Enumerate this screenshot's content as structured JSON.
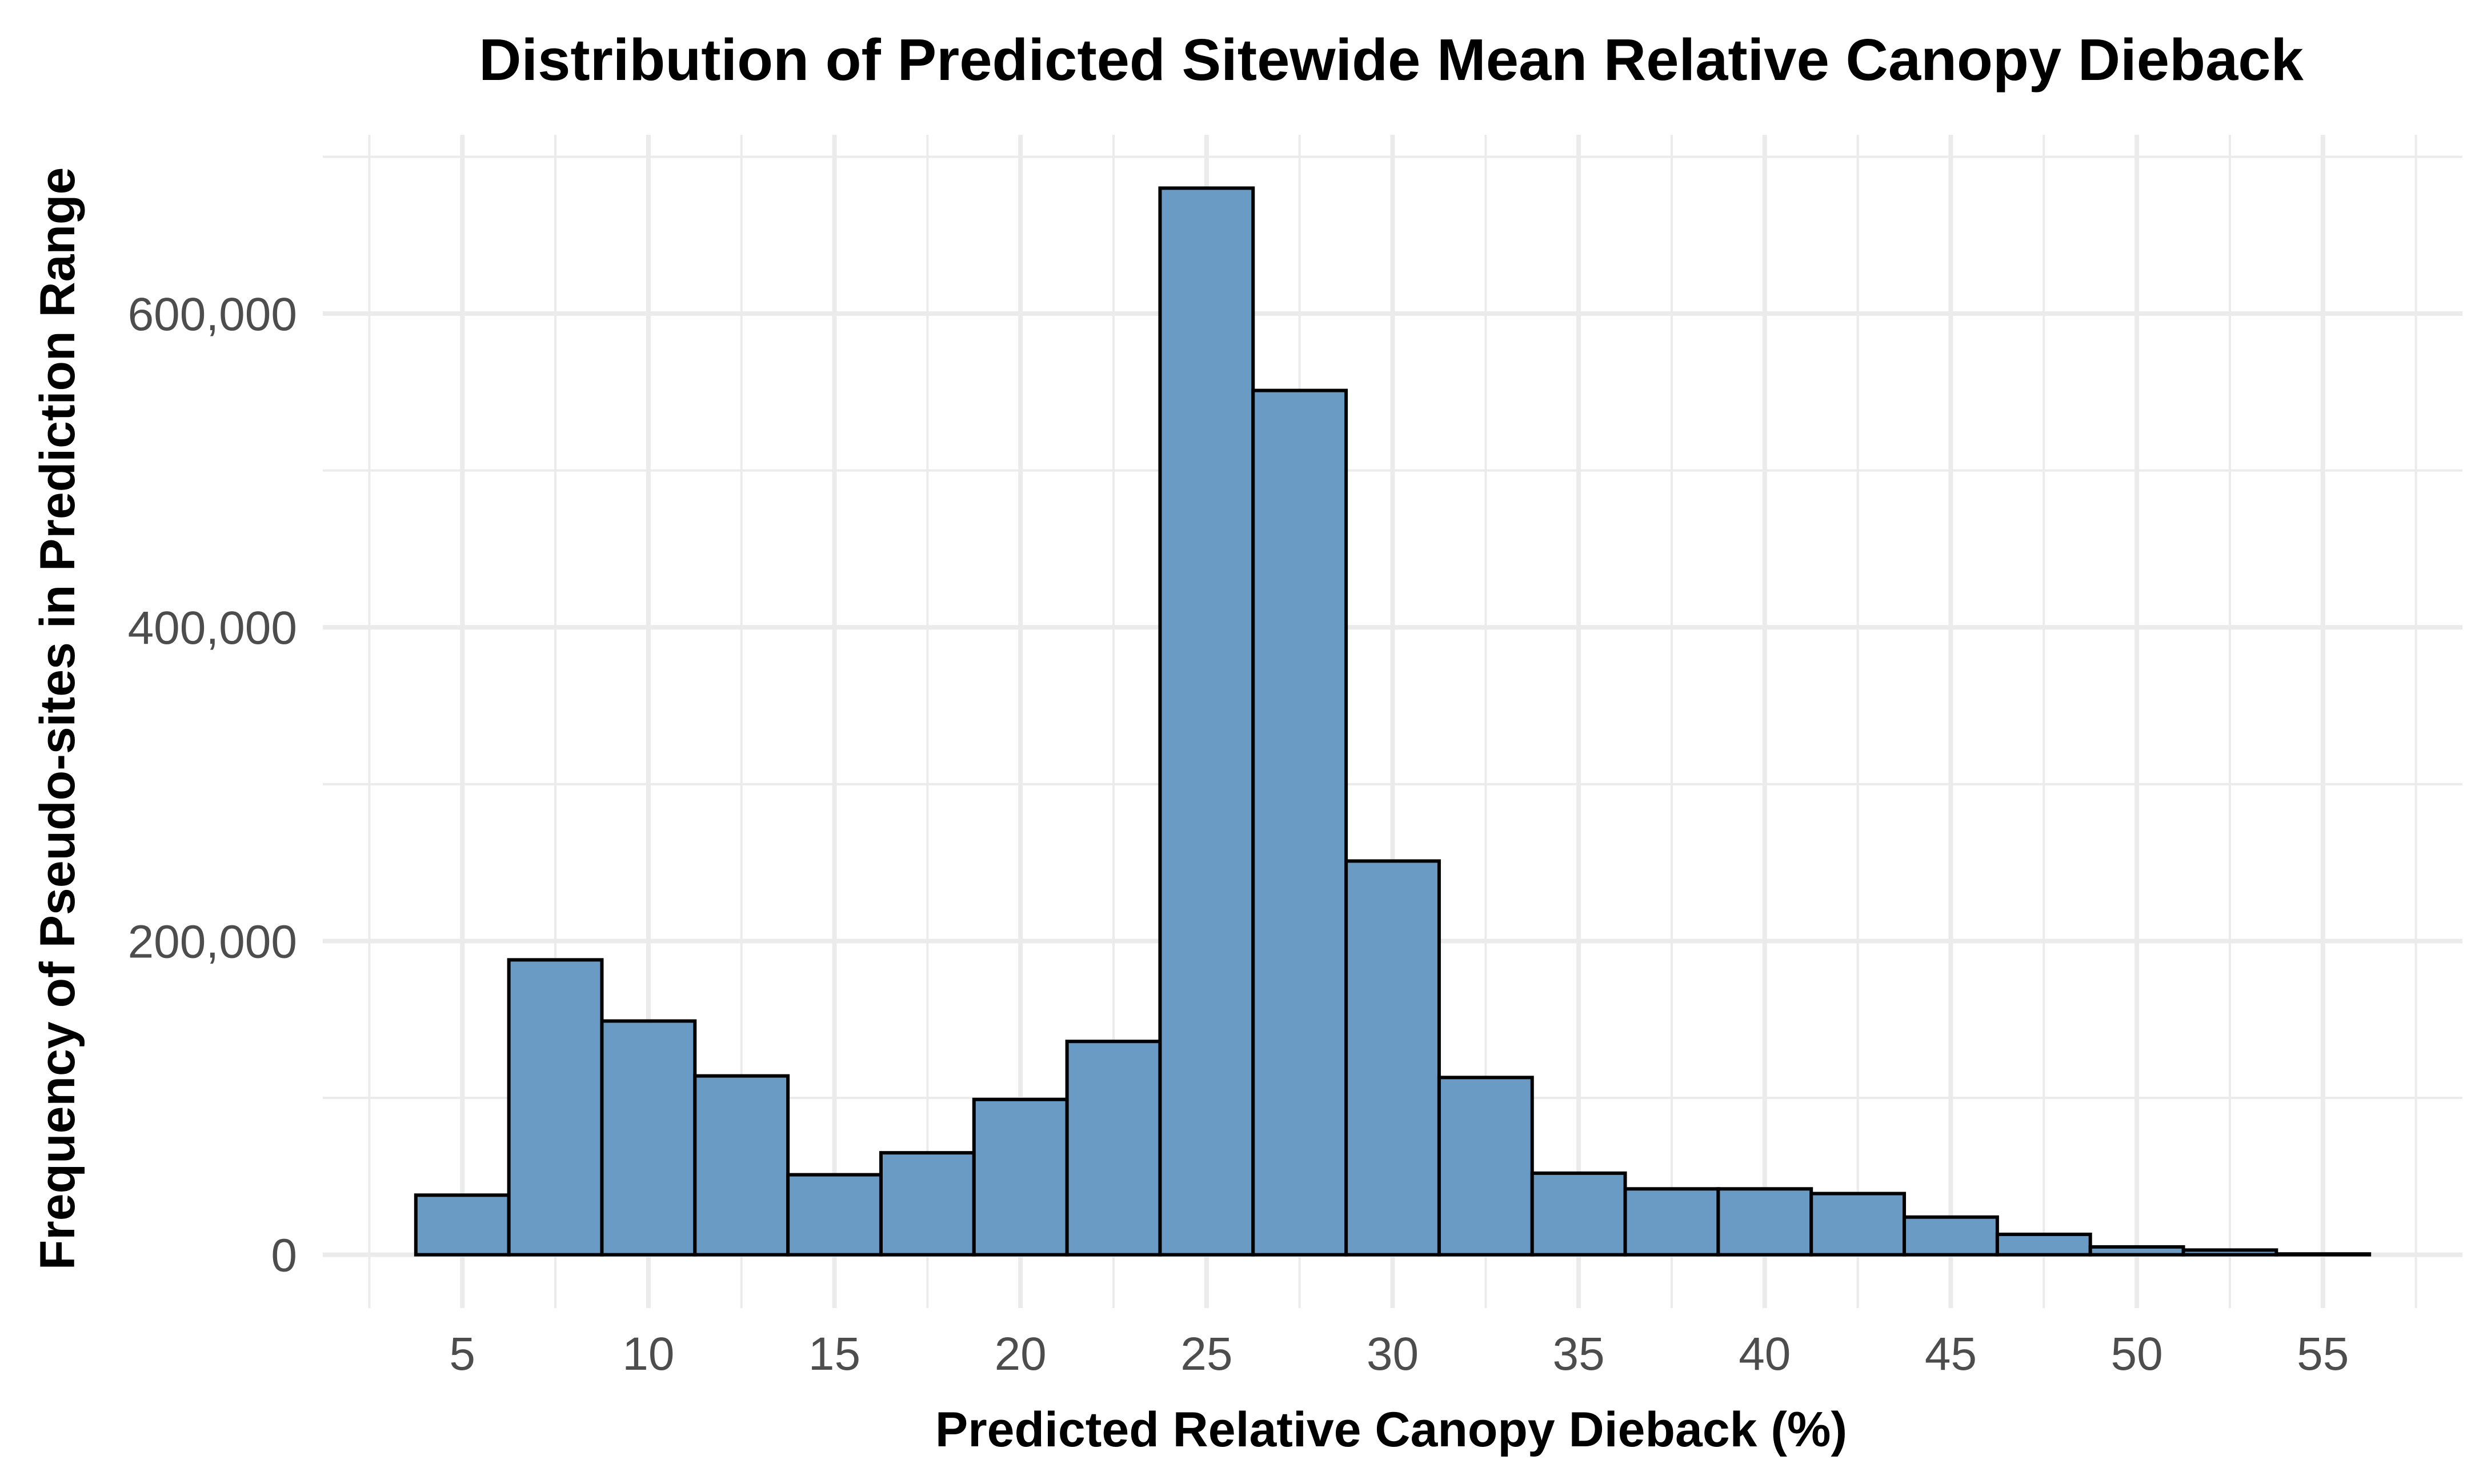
{
  "chart_data": {
    "type": "bar",
    "title": "Distribution of Predicted Sitewide Mean Relative Canopy Dieback",
    "xlabel": "Predicted Relative Canopy Dieback (%)",
    "ylabel": "Frequency of Pseudo-sites in Prediction Range",
    "bin_width": 2.5,
    "bins": [
      {
        "start": 3.75,
        "end": 6.25,
        "count": 38000
      },
      {
        "start": 6.25,
        "end": 8.75,
        "count": 188000
      },
      {
        "start": 8.75,
        "end": 11.25,
        "count": 149000
      },
      {
        "start": 11.25,
        "end": 13.75,
        "count": 114000
      },
      {
        "start": 13.75,
        "end": 16.25,
        "count": 51000
      },
      {
        "start": 16.25,
        "end": 18.75,
        "count": 65000
      },
      {
        "start": 18.75,
        "end": 21.25,
        "count": 99000
      },
      {
        "start": 21.25,
        "end": 23.75,
        "count": 136000
      },
      {
        "start": 23.75,
        "end": 26.25,
        "count": 680000
      },
      {
        "start": 26.25,
        "end": 28.75,
        "count": 551000
      },
      {
        "start": 28.75,
        "end": 31.25,
        "count": 251000
      },
      {
        "start": 31.25,
        "end": 33.75,
        "count": 113000
      },
      {
        "start": 33.75,
        "end": 36.25,
        "count": 52000
      },
      {
        "start": 36.25,
        "end": 38.75,
        "count": 42000
      },
      {
        "start": 38.75,
        "end": 41.25,
        "count": 42000
      },
      {
        "start": 41.25,
        "end": 43.75,
        "count": 39000
      },
      {
        "start": 43.75,
        "end": 46.25,
        "count": 24000
      },
      {
        "start": 46.25,
        "end": 48.75,
        "count": 13000
      },
      {
        "start": 48.75,
        "end": 51.25,
        "count": 5000
      },
      {
        "start": 51.25,
        "end": 53.75,
        "count": 3000
      },
      {
        "start": 53.75,
        "end": 56.25,
        "count": 500
      }
    ],
    "xlim": [
      1.25,
      58.75
    ],
    "ylim": [
      -34000,
      714000
    ],
    "x_ticks": [
      5,
      10,
      15,
      20,
      25,
      30,
      35,
      40,
      45,
      50,
      55
    ],
    "x_tick_labels": [
      "5",
      "10",
      "15",
      "20",
      "25",
      "30",
      "35",
      "40",
      "45",
      "50",
      "55"
    ],
    "x_minor_ticks": [
      2.5,
      7.5,
      12.5,
      17.5,
      22.5,
      27.5,
      32.5,
      37.5,
      42.5,
      47.5,
      52.5,
      57.5
    ],
    "y_ticks": [
      0,
      200000,
      400000,
      600000
    ],
    "y_tick_labels": [
      "0",
      "200,000",
      "400,000",
      "600,000"
    ],
    "y_minor_ticks": [
      100000,
      300000,
      500000,
      700000
    ],
    "grid": true,
    "legend": "none",
    "colors": {
      "bar_fill": "#6a9bc4",
      "bar_outline": "#000000",
      "grid": "#ebebeb",
      "background": "#ffffff"
    }
  }
}
